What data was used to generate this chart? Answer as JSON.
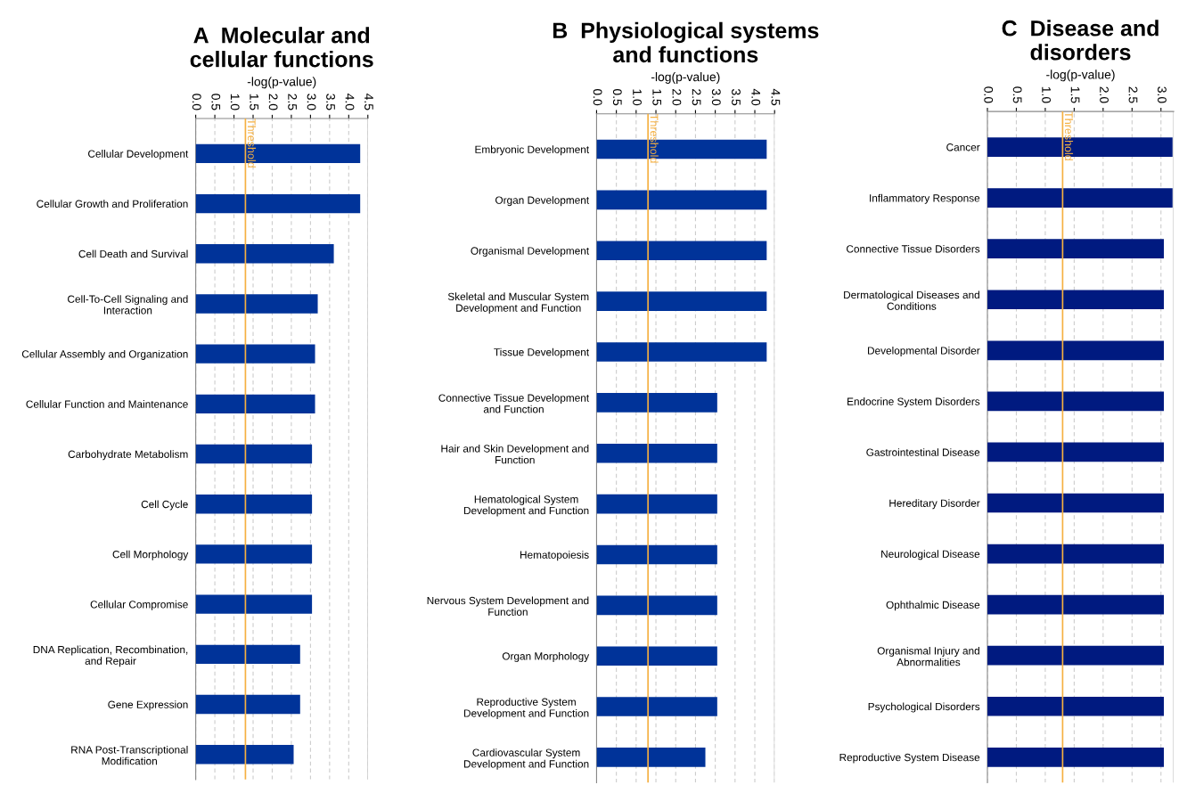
{
  "chart_data": [
    {
      "type": "bar",
      "orientation": "horizontal",
      "title": "A  Molecular and\ncellular functions",
      "xlabel": "-log(p-value)",
      "categories": [
        "Cellular Development",
        "Cellular Growth and Proliferation",
        "Cell Death and Survival",
        "Cell-To-Cell Signaling and\nInteraction",
        "Cellular Assembly and Organization",
        "Cellular Function and Maintenance",
        "Carbohydrate Metabolism",
        "Cell Cycle",
        "Cell Morphology",
        "Cellular Compromise",
        "DNA Replication, Recombination,\nand Repair",
        "Gene Expression",
        "RNA Post-Transcriptional\nModification"
      ],
      "series": [
        {
          "color": "#003399",
          "values": [
            4.3,
            4.3,
            3.61,
            3.19,
            3.12,
            3.12,
            3.04,
            3.04,
            3.04,
            3.04,
            2.73,
            2.73,
            2.56
          ]
        }
      ],
      "xlim": [
        0,
        4.5
      ],
      "xticks": [
        {
          "value": 0,
          "label": "0.0"
        },
        0.5,
        {
          "value": 1,
          "label": "1.0"
        },
        1.5,
        {
          "value": 2,
          "label": "2.0"
        },
        2.5,
        {
          "value": 3,
          "label": "3.0"
        },
        3.5,
        {
          "value": 4,
          "label": "4.0"
        },
        4.5
      ],
      "ref_lines": [
        {
          "axis": "x",
          "value": 1.3,
          "label": "Threshold",
          "color": "#f5b041"
        }
      ],
      "grid": "x",
      "legend": false
    },
    {
      "type": "bar",
      "orientation": "horizontal",
      "title": "B  Physiological systems\nand functions",
      "xlabel": "-log(p-value)",
      "categories": [
        "Embryonic Development",
        "Organ Development",
        "Organismal Development",
        "Skeletal and Muscular System\nDevelopment and Function",
        "Tissue Development",
        "Connective Tissue Development\nand Function",
        "Hair and Skin Development and\nFunction",
        "Hematological System\nDevelopment and Function",
        "Hematopoiesis",
        "Nervous System Development and\nFunction",
        "Organ Morphology",
        "Reproductive System\nDevelopment and Function",
        "Cardiovascular System\nDevelopment and Function"
      ],
      "series": [
        {
          "color": "#003399",
          "values": [
            4.3,
            4.3,
            4.3,
            4.3,
            4.3,
            3.05,
            3.05,
            3.05,
            3.05,
            3.05,
            3.05,
            3.05,
            2.75
          ]
        }
      ],
      "xlim": [
        0,
        4.5
      ],
      "xticks": [
        {
          "value": 0,
          "label": "0.0"
        },
        0.5,
        {
          "value": 1,
          "label": "1.0"
        },
        1.5,
        {
          "value": 2,
          "label": "2.0"
        },
        2.5,
        {
          "value": 3,
          "label": "3.0"
        },
        3.5,
        {
          "value": 4,
          "label": "4.0"
        },
        4.5
      ],
      "ref_lines": [
        {
          "axis": "x",
          "value": 1.3,
          "label": "Threshold",
          "color": "#f5b041"
        }
      ],
      "grid": "x",
      "legend": false
    },
    {
      "type": "bar",
      "orientation": "horizontal",
      "title": "C  Disease and\ndisorders",
      "xlabel": "-log(p-value)",
      "categories": [
        "Cancer",
        "Inflammatory Response",
        "Connective Tissue Disorders",
        "Dermatological Diseases and\nConditions",
        "Developmental Disorder",
        "Endocrine System Disorders",
        "Gastrointestinal Disease",
        "Hereditary Disorder",
        "Neurological Disease",
        "Ophthalmic Disease",
        "Organismal Injury and\nAbnormalities",
        "Psychological Disorders",
        "Reproductive System Disease"
      ],
      "series": [
        {
          "color": "#001a80",
          "values": [
            3.2,
            3.2,
            3.05,
            3.05,
            3.05,
            3.05,
            3.05,
            3.05,
            3.05,
            3.05,
            3.05,
            3.05,
            3.05
          ]
        }
      ],
      "xlim": [
        0,
        3.22
      ],
      "xticks": [
        {
          "value": 0,
          "label": "0.0"
        },
        0.5,
        {
          "value": 1,
          "label": "1.0"
        },
        1.5,
        {
          "value": 2,
          "label": "2.0"
        },
        2.5,
        {
          "value": 3,
          "label": "3.0"
        }
      ],
      "ref_lines": [
        {
          "axis": "x",
          "value": 1.3,
          "label": "Threshold",
          "color": "#f5b041"
        }
      ],
      "grid": "x",
      "legend": false
    }
  ]
}
